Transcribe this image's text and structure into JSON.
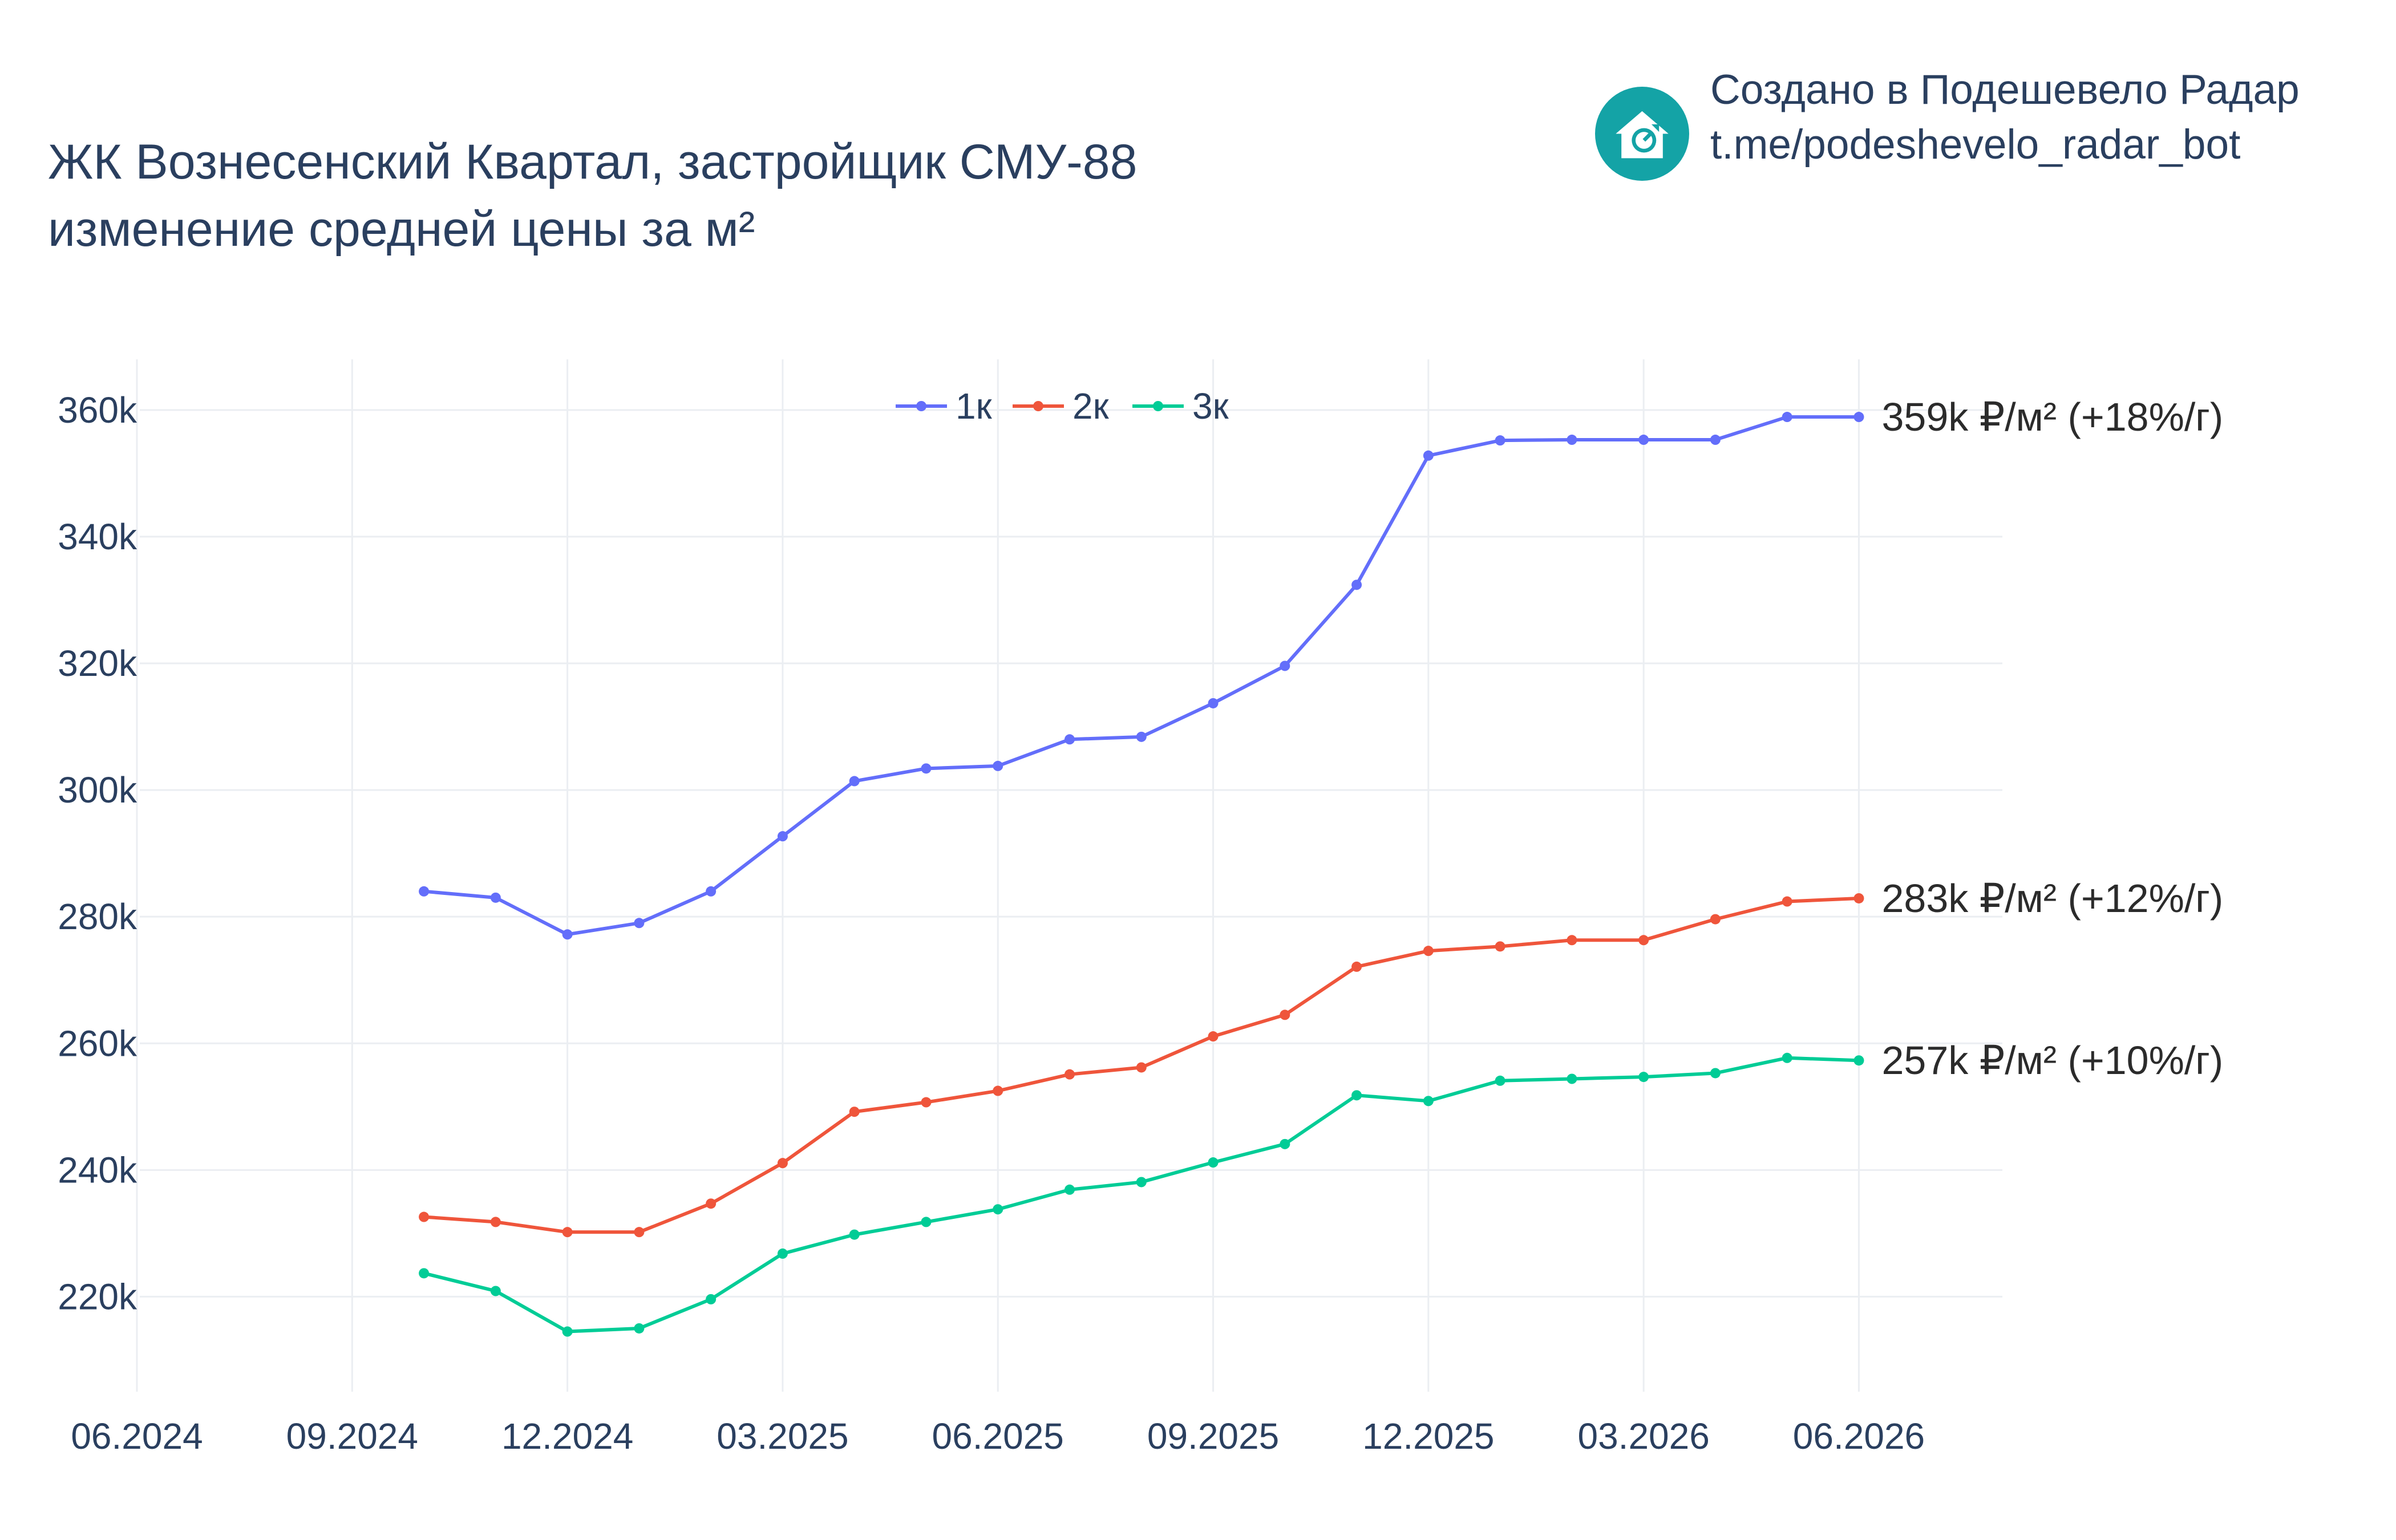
{
  "header": {
    "title_line1": "ЖК Вознесенский Квартал, застройщик СМУ-88",
    "title_line2": "изменение средней цены за м²"
  },
  "brand": {
    "name": "Создано в Подешевело Радар",
    "link": "t.me/podeshevelo_radar_bot",
    "logo_icon": "house-chart-icon",
    "logo_color": "#14a3a6"
  },
  "chart_data": {
    "type": "line",
    "title": "ЖК Вознесенский Квартал, застройщик СМУ-88 — изменение средней цены за м²",
    "x_tick_labels": [
      "06.2024",
      "09.2024",
      "12.2024",
      "03.2025",
      "06.2025",
      "09.2025",
      "12.2025",
      "03.2026",
      "06.2026"
    ],
    "y_tick_labels": [
      "220k",
      "240k",
      "260k",
      "280k",
      "300k",
      "320k",
      "340k",
      "360k"
    ],
    "y_ticks": [
      220000,
      240000,
      260000,
      280000,
      300000,
      320000,
      340000,
      360000
    ],
    "xlim": [
      "2024-06-01",
      "2026-08-01"
    ],
    "ylim": [
      205000,
      368000
    ],
    "grid": true,
    "legend_position": "top-center",
    "x": [
      "2024-10-01",
      "2024-11-01",
      "2024-12-01",
      "2025-01-01",
      "2025-02-01",
      "2025-03-01",
      "2025-04-01",
      "2025-05-01",
      "2025-06-01",
      "2025-07-01",
      "2025-08-01",
      "2025-09-01",
      "2025-10-01",
      "2025-11-01",
      "2025-12-01",
      "2026-01-01",
      "2026-02-01",
      "2026-03-01",
      "2026-04-01",
      "2026-05-01",
      "2026-06-01"
    ],
    "series": [
      {
        "name": "1к",
        "color": "#636efa",
        "values": [
          284000,
          283000,
          277200,
          279000,
          284000,
          292700,
          301400,
          303400,
          303800,
          308000,
          308400,
          313700,
          319600,
          332400,
          352800,
          355200,
          355300,
          355300,
          355300,
          358900,
          358900
        ],
        "end_label": "359k ₽/м² (+18%/г)"
      },
      {
        "name": "2к",
        "color": "#ef553b",
        "values": [
          232600,
          231800,
          230200,
          230200,
          234700,
          241100,
          249200,
          250700,
          252500,
          255100,
          256200,
          261100,
          264500,
          272100,
          274600,
          275300,
          276300,
          276300,
          279600,
          282400,
          282900
        ],
        "end_label": "283k ₽/м² (+12%/г)"
      },
      {
        "name": "3к",
        "color": "#00cc96",
        "values": [
          223700,
          220900,
          214500,
          215000,
          219600,
          226800,
          229800,
          231800,
          233800,
          236900,
          238100,
          241200,
          244100,
          251800,
          250900,
          254100,
          254400,
          254700,
          255300,
          257700,
          257300
        ],
        "end_label": "257k ₽/м² (+10%/г)"
      }
    ]
  }
}
